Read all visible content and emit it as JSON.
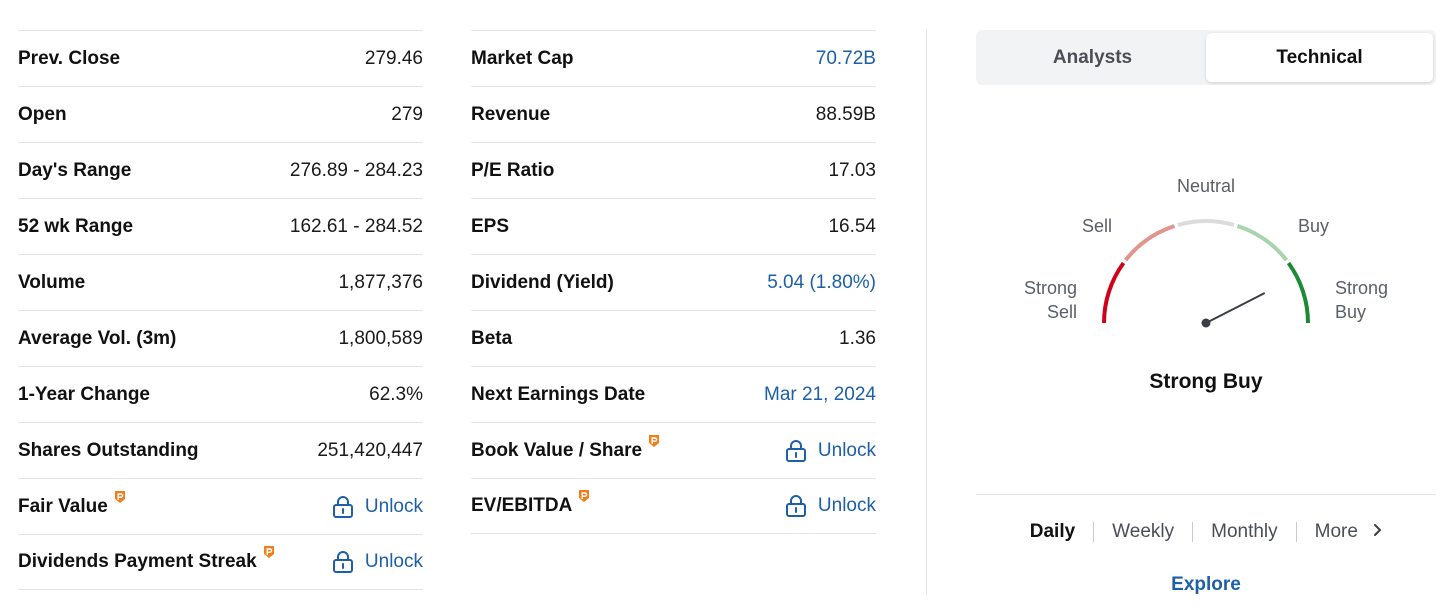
{
  "left_column": [
    {
      "label": "Prev. Close",
      "value": "279.46",
      "link": false,
      "locked": false,
      "pro": false
    },
    {
      "label": "Open",
      "value": "279",
      "link": false,
      "locked": false,
      "pro": false
    },
    {
      "label": "Day's Range",
      "value": "276.89 - 284.23",
      "link": false,
      "locked": false,
      "pro": false
    },
    {
      "label": "52 wk Range",
      "value": "162.61 - 284.52",
      "link": false,
      "locked": false,
      "pro": false
    },
    {
      "label": "Volume",
      "value": "1,877,376",
      "link": false,
      "locked": false,
      "pro": false
    },
    {
      "label": "Average Vol. (3m)",
      "value": "1,800,589",
      "link": false,
      "locked": false,
      "pro": false
    },
    {
      "label": "1-Year Change",
      "value": "62.3%",
      "link": false,
      "locked": false,
      "pro": false
    },
    {
      "label": "Shares Outstanding",
      "value": "251,420,447",
      "link": false,
      "locked": false,
      "pro": false
    },
    {
      "label": "Fair Value",
      "value": "Unlock",
      "link": true,
      "locked": true,
      "pro": true
    },
    {
      "label": "Dividends Payment Streak",
      "value": "Unlock",
      "link": true,
      "locked": true,
      "pro": true
    }
  ],
  "mid_column": [
    {
      "label": "Market Cap",
      "value": "70.72B",
      "link": true,
      "locked": false,
      "pro": false
    },
    {
      "label": "Revenue",
      "value": "88.59B",
      "link": false,
      "locked": false,
      "pro": false
    },
    {
      "label": "P/E Ratio",
      "value": "17.03",
      "link": false,
      "locked": false,
      "pro": false
    },
    {
      "label": "EPS",
      "value": "16.54",
      "link": false,
      "locked": false,
      "pro": false
    },
    {
      "label": "Dividend (Yield)",
      "value": "5.04 (1.80%)",
      "link": true,
      "locked": false,
      "pro": false
    },
    {
      "label": "Beta",
      "value": "1.36",
      "link": false,
      "locked": false,
      "pro": false
    },
    {
      "label": "Next Earnings Date",
      "value": "Mar 21, 2024",
      "link": true,
      "locked": false,
      "pro": false
    },
    {
      "label": "Book Value / Share",
      "value": "Unlock",
      "link": true,
      "locked": true,
      "pro": true
    },
    {
      "label": "EV/EBITDA",
      "value": "Unlock",
      "link": true,
      "locked": true,
      "pro": true
    }
  ],
  "tabs": [
    {
      "label": "Analysts",
      "active": false
    },
    {
      "label": "Technical",
      "active": true
    }
  ],
  "gauge": {
    "labels": {
      "strong_sell": [
        "Strong",
        "Sell"
      ],
      "sell": "Sell",
      "neutral": "Neutral",
      "buy": "Buy",
      "strong_buy": [
        "Strong",
        "Buy"
      ]
    },
    "result": "Strong Buy",
    "needle_level": 0.85,
    "colors": {
      "strong_sell": "#d0021b",
      "sell": "#e0958f",
      "neutral": "#dcdcdc",
      "buy": "#a9d3ad",
      "strong_buy": "#1e8a35"
    }
  },
  "periods": [
    {
      "label": "Daily",
      "active": true
    },
    {
      "label": "Weekly",
      "active": false
    },
    {
      "label": "Monthly",
      "active": false
    },
    {
      "label": "More",
      "active": false
    }
  ],
  "explore_label": "Explore",
  "colors": {
    "link": "#1d5fa8",
    "pro_badge": "#f07e1b"
  }
}
